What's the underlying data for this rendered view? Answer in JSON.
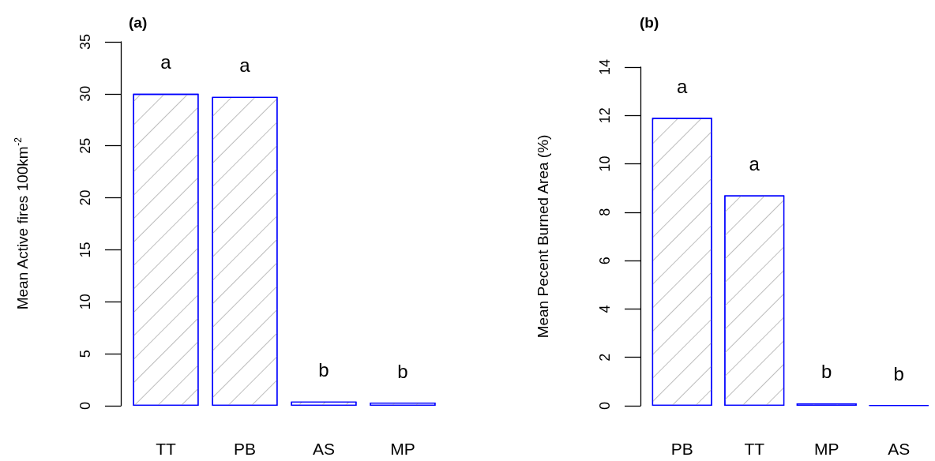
{
  "chart_data": [
    {
      "type": "bar",
      "title": "(a)",
      "ylabel": "Mean Active fires 100km$^{-2}$",
      "categories": [
        "TT",
        "PB",
        "AS",
        "MP"
      ],
      "values": [
        30,
        29.7,
        0.4,
        0.3
      ],
      "color": "#0000ff",
      "ylim": [
        0,
        35
      ],
      "yticks": [
        0,
        5,
        10,
        15,
        20,
        25,
        30,
        35
      ],
      "annotations": [
        "a",
        "a",
        "b",
        "b"
      ]
    },
    {
      "type": "bar",
      "title": "(b)",
      "ylabel": "Mean Pecent Burned Area (%)",
      "categories": [
        "PB",
        "TT",
        "MP",
        "AS"
      ],
      "values": [
        11.9,
        8.7,
        0.1,
        0.02
      ],
      "color": "#0000ff",
      "ylim": [
        0,
        14
      ],
      "yticks": [
        0,
        2,
        4,
        6,
        8,
        10,
        12,
        14
      ],
      "annotations": [
        "a",
        "a",
        "b",
        "b"
      ]
    }
  ]
}
